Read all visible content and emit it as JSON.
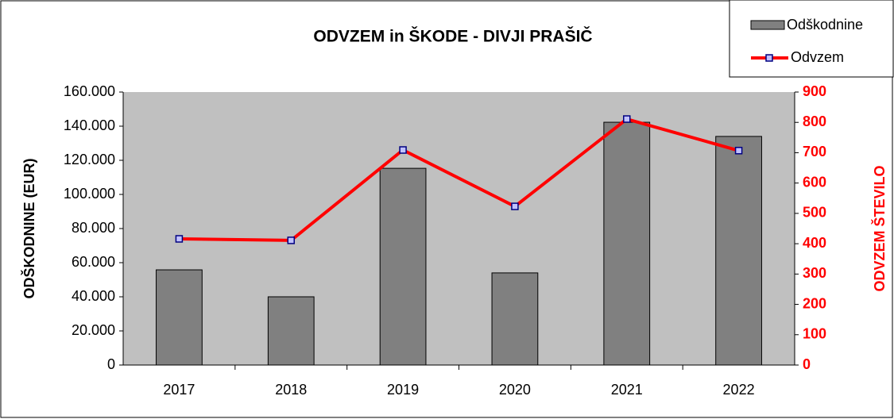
{
  "chart_data": {
    "type": "bar_line",
    "title": "ODVZEM in ŠKODE - DIVJI  PRAŠIČ",
    "y_label": "ODŠKODNINE (EUR)",
    "y2_label": "ODVZEM ŠTEVILO",
    "categories": [
      "2017",
      "2018",
      "2019",
      "2020",
      "2021",
      "2022"
    ],
    "series": [
      {
        "name": "Odškodnine",
        "type": "bar",
        "color": "#808080",
        "values": [
          55800,
          40000,
          115300,
          54000,
          142300,
          134000
        ]
      },
      {
        "name": "Odvzem",
        "type": "line",
        "axis": "y2",
        "color": "#ff0000",
        "marker_color": "#000080",
        "values": [
          416,
          411,
          709,
          523,
          811,
          707
        ]
      }
    ],
    "ylim": [
      0,
      160000
    ],
    "yticks": [
      0,
      {
        "value": 20000,
        "label": "20.000"
      },
      {
        "value": 40000,
        "label": "40.000"
      },
      {
        "value": 60000,
        "label": "60.000"
      },
      {
        "value": 80000,
        "label": "80.000"
      },
      {
        "value": 100000,
        "label": "100.000"
      },
      {
        "value": 120000,
        "label": "120.000"
      },
      {
        "value": 140000,
        "label": "140.000"
      },
      {
        "value": 160000,
        "label": "160.000"
      }
    ],
    "y2lim": [
      0,
      900
    ],
    "y2ticks": [
      0,
      100,
      200,
      300,
      400,
      500,
      600,
      700,
      800,
      900
    ],
    "grid": false,
    "legend": "top-right"
  }
}
